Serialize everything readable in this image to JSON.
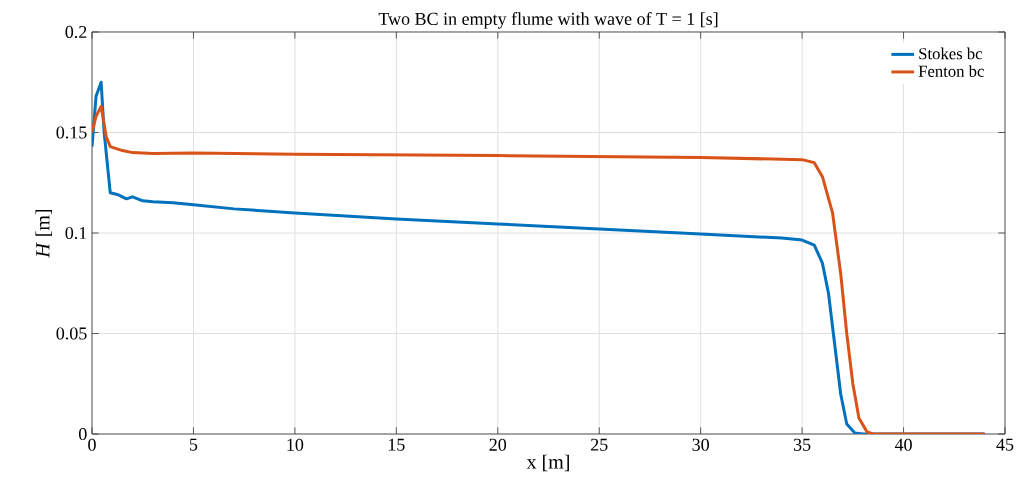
{
  "chart_data": {
    "type": "line",
    "title": "Two BC in empty flume with wave of T = 1 [s]",
    "xlabel": "x [m]",
    "ylabel": "*H* [m]",
    "xlim": [
      0,
      45
    ],
    "ylim": [
      0,
      0.2
    ],
    "xticks": [
      0,
      5,
      10,
      15,
      20,
      25,
      30,
      35,
      40,
      45
    ],
    "yticks": [
      0,
      0.05,
      0.1,
      0.15,
      0.2
    ],
    "grid": true,
    "legend": "top right",
    "line_style": "solid",
    "marker": "none",
    "series": [
      {
        "name": "Stokes bc",
        "color": "#0072bd",
        "x": [
          0,
          0.2,
          0.45,
          0.6,
          0.9,
          1.3,
          1.7,
          2.0,
          2.5,
          3,
          4,
          5,
          7,
          10,
          15,
          20,
          25,
          30,
          34,
          35,
          35.6,
          36,
          36.3,
          36.6,
          36.9,
          37.2,
          37.6,
          38,
          44
        ],
        "values": [
          0.143,
          0.168,
          0.175,
          0.15,
          0.12,
          0.119,
          0.117,
          0.118,
          0.116,
          0.1155,
          0.115,
          0.114,
          0.112,
          0.11,
          0.107,
          0.1045,
          0.102,
          0.0995,
          0.0975,
          0.0965,
          0.094,
          0.085,
          0.07,
          0.045,
          0.02,
          0.005,
          0.0005,
          0,
          0
        ]
      },
      {
        "name": "Fenton bc",
        "color": "#d95319",
        "x": [
          0,
          0.2,
          0.45,
          0.7,
          0.9,
          1.5,
          2,
          3,
          5,
          10,
          20,
          30,
          35,
          35.6,
          36,
          36.5,
          36.9,
          37.2,
          37.5,
          37.8,
          38.2,
          38.5,
          44
        ],
        "values": [
          0.15,
          0.158,
          0.163,
          0.148,
          0.143,
          0.141,
          0.14,
          0.1395,
          0.1398,
          0.1392,
          0.1385,
          0.1375,
          0.1365,
          0.135,
          0.128,
          0.11,
          0.08,
          0.05,
          0.025,
          0.008,
          0.001,
          0,
          0
        ]
      }
    ]
  }
}
